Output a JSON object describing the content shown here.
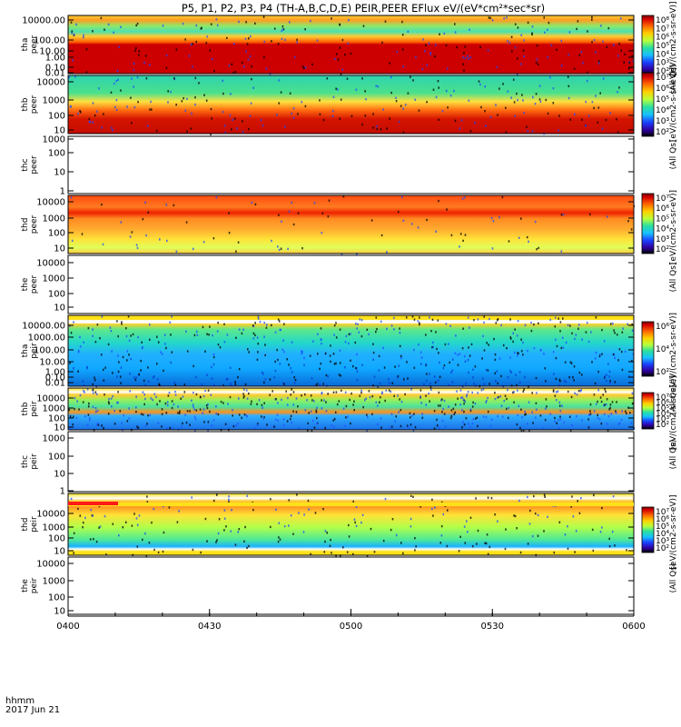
{
  "title": "P5, P1, P2, P3, P4 (TH-A,B,C,D,E) PEIR,PEER EFlux eV/(eV*cm²*sec*sr)",
  "footer": {
    "axis_label": "hhmm",
    "date": "2017 Jun 21"
  },
  "colorbar_unit": "[eV/(cm2-s-sr-eV)]",
  "colorbar_overlay_label": "(All Qs)",
  "chart_data": [
    {
      "type": "heatmap",
      "probe": "tha",
      "species": "peer",
      "ylabel": "tha\npeer",
      "yticks": [
        "10000.00",
        "100.00",
        "10.00",
        "1.00",
        "0.10",
        "0.01"
      ],
      "ylim": [
        0.01,
        10000
      ],
      "yscale": "log",
      "xlim": [
        "0400",
        "0600"
      ],
      "xticks": [
        "0400",
        "0430",
        "0500",
        "0530",
        "0600"
      ],
      "colorbar_ticks": [
        "10⁸",
        "10⁷",
        "10⁶",
        "10⁵",
        "10⁴",
        "10³",
        "10²"
      ]
    },
    {
      "type": "heatmap",
      "probe": "thb",
      "species": "peer",
      "ylabel": "thb\npeer",
      "yticks": [
        "10000",
        "1000",
        "100",
        "10"
      ],
      "ylim": [
        10,
        20000
      ],
      "yscale": "log",
      "colorbar_ticks": [
        "10⁷",
        "10⁶",
        "10⁵",
        "10⁴",
        "10³",
        "10²"
      ]
    },
    {
      "type": "heatmap",
      "probe": "thc",
      "species": "peer",
      "ylabel": "thc\npeer",
      "yticks": [
        "1000",
        "100",
        "10",
        "1"
      ],
      "ylim": [
        1,
        1000
      ],
      "yscale": "log",
      "empty": true
    },
    {
      "type": "heatmap",
      "probe": "thd",
      "species": "peer",
      "ylabel": "thd\npeer",
      "yticks": [
        "10000",
        "1000",
        "100",
        "10"
      ],
      "ylim": [
        5,
        30000
      ],
      "yscale": "log",
      "colorbar_ticks": [
        "10⁷",
        "10⁶",
        "10⁵",
        "10⁴",
        "10³",
        "10²"
      ]
    },
    {
      "type": "heatmap",
      "probe": "the",
      "species": "peer",
      "ylabel": "the\npeer",
      "yticks": [
        "10000",
        "1000",
        "100",
        "10"
      ],
      "ylim": [
        5,
        30000
      ],
      "yscale": "log",
      "empty": true
    },
    {
      "type": "heatmap",
      "probe": "tha",
      "species": "peir",
      "ylabel": "tha\npeir",
      "yticks": [
        "10000.00",
        "1000.00",
        "100.00",
        "10.00",
        "1.00",
        "0.10",
        "0.01"
      ],
      "ylim": [
        0.01,
        10000
      ],
      "yscale": "log",
      "colorbar_ticks": [
        "10⁶",
        "10⁴",
        "10²"
      ]
    },
    {
      "type": "heatmap",
      "probe": "thb",
      "species": "peir",
      "ylabel": "thb\npeir",
      "yticks": [
        "10000",
        "1000",
        "100",
        "10"
      ],
      "ylim": [
        5,
        30000
      ],
      "yscale": "log",
      "colorbar_ticks": [
        "10⁷",
        "10⁶",
        "10⁵",
        "10⁴",
        "10³",
        "10²"
      ]
    },
    {
      "type": "heatmap",
      "probe": "thc",
      "species": "peir",
      "ylabel": "thc\npeir",
      "yticks": [
        "1000",
        "100",
        "10",
        "1"
      ],
      "ylim": [
        1,
        1000
      ],
      "yscale": "log",
      "empty": true
    },
    {
      "type": "heatmap",
      "probe": "thd",
      "species": "peir",
      "ylabel": "thd\npeir",
      "yticks": [
        "10000",
        "1000",
        "100",
        "10"
      ],
      "ylim": [
        5,
        30000
      ],
      "yscale": "log",
      "colorbar_ticks": [
        "10⁷",
        "10⁶",
        "10⁵",
        "10⁴",
        "10³",
        "10²"
      ]
    },
    {
      "type": "heatmap",
      "probe": "the",
      "species": "peir",
      "ylabel": "the\npeir",
      "yticks": [
        "10000",
        "1000",
        "100",
        "10"
      ],
      "ylim": [
        5,
        30000
      ],
      "yscale": "log",
      "empty": true
    }
  ]
}
